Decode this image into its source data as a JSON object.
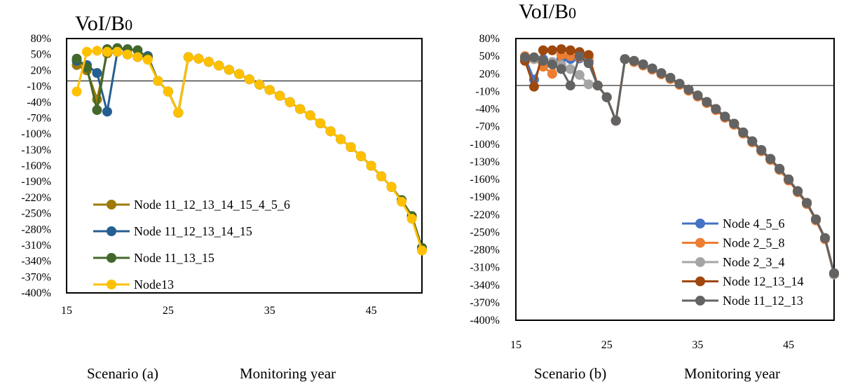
{
  "chart_data": [
    {
      "type": "line",
      "title": "VoI/B0",
      "title_main": "VoI/B",
      "title_sub": "0",
      "scenario_label": "Scenario (a)",
      "xlabel": "Monitoring year",
      "xlim": [
        15,
        50
      ],
      "xticks": [
        15,
        25,
        35,
        45
      ],
      "ylim": [
        -400,
        80
      ],
      "ytick_labels": [
        "80%",
        "50%",
        "20%",
        "-10%",
        "-40%",
        "-70%",
        "-100%",
        "-130%",
        "-160%",
        "-190%",
        "-220%",
        "-250%",
        "-280%",
        "-310%",
        "-340%",
        "-370%",
        "-400%"
      ],
      "ytick_values": [
        80,
        50,
        20,
        -10,
        -40,
        -70,
        -100,
        -130,
        -160,
        -190,
        -220,
        -250,
        -280,
        -310,
        -340,
        -370,
        -400
      ],
      "reference_line_y": 0,
      "legend_position": "lower-left",
      "series": [
        {
          "name": "Node 11_12_13_14_15_4_5_6",
          "color": "#9C7A00",
          "x": [
            16,
            17,
            18,
            19,
            20,
            21,
            22,
            23,
            24,
            25,
            26,
            27,
            28,
            29,
            30,
            31,
            32,
            33,
            34,
            35,
            36,
            37,
            38,
            39,
            40,
            41,
            42,
            43,
            44,
            45,
            46,
            47,
            48,
            49,
            50
          ],
          "y": [
            30,
            20,
            -35,
            52,
            55,
            50,
            45,
            45,
            0,
            -20,
            -60,
            45,
            42,
            36,
            29,
            21,
            13,
            3,
            -7,
            -17,
            -28,
            -40,
            -53,
            -65,
            -80,
            -95,
            -110,
            -125,
            -142,
            -160,
            -180,
            -200,
            -225,
            -255,
            -315
          ]
        },
        {
          "name": "Node 11_12_13_14_15",
          "color": "#255E91",
          "x": [
            16,
            17,
            18,
            19,
            20,
            21,
            22,
            23,
            24,
            25,
            26,
            27,
            28,
            29,
            30,
            31,
            32,
            33,
            34,
            35,
            36,
            37,
            38,
            39,
            40,
            41,
            42,
            43,
            44,
            45,
            46,
            47,
            48,
            49,
            50
          ],
          "y": [
            38,
            30,
            15,
            -58,
            55,
            50,
            45,
            47,
            0,
            -20,
            -60,
            45,
            42,
            36,
            29,
            21,
            13,
            3,
            -7,
            -17,
            -28,
            -40,
            -53,
            -65,
            -80,
            -95,
            -110,
            -125,
            -142,
            -160,
            -180,
            -200,
            -225,
            -255,
            -315
          ]
        },
        {
          "name": "Node 11_13_15",
          "color": "#43682B",
          "x": [
            16,
            17,
            18,
            19,
            20,
            21,
            22,
            23,
            24,
            25,
            26,
            27,
            28,
            29,
            30,
            31,
            32,
            33,
            34,
            35,
            36,
            37,
            38,
            39,
            40,
            41,
            42,
            43,
            44,
            45,
            46,
            47,
            48,
            49,
            50
          ],
          "y": [
            42,
            25,
            -55,
            60,
            62,
            60,
            58,
            44,
            0,
            -20,
            -60,
            45,
            42,
            36,
            29,
            21,
            13,
            3,
            -7,
            -17,
            -28,
            -40,
            -53,
            -65,
            -80,
            -95,
            -110,
            -125,
            -142,
            -160,
            -180,
            -200,
            -225,
            -255,
            -315
          ]
        },
        {
          "name": "Node13",
          "color": "#FFC000",
          "x": [
            16,
            17,
            18,
            19,
            20,
            21,
            22,
            23,
            24,
            25,
            26,
            27,
            28,
            29,
            30,
            31,
            32,
            33,
            34,
            35,
            36,
            37,
            38,
            39,
            40,
            41,
            42,
            43,
            44,
            45,
            46,
            47,
            48,
            49,
            50
          ],
          "y": [
            -20,
            55,
            57,
            55,
            55,
            50,
            45,
            40,
            0,
            -20,
            -60,
            45,
            42,
            36,
            29,
            21,
            13,
            3,
            -7,
            -17,
            -28,
            -40,
            -53,
            -65,
            -80,
            -95,
            -110,
            -125,
            -142,
            -160,
            -180,
            -200,
            -228,
            -260,
            -320
          ]
        }
      ]
    },
    {
      "type": "line",
      "title": "VoI/B0",
      "title_main": "VoI/B",
      "title_sub": "0",
      "scenario_label": "Scenario (b)",
      "xlabel": "Monitoring year",
      "xlim": [
        15,
        50
      ],
      "xticks": [
        15,
        25,
        35,
        45
      ],
      "ylim": [
        -400,
        80
      ],
      "ytick_labels": [
        "80%",
        "50%",
        "20%",
        "-10%",
        "-40%",
        "-70%",
        "-100%",
        "-130%",
        "-160%",
        "-190%",
        "-220%",
        "-250%",
        "-280%",
        "-310%",
        "-340%",
        "-370%",
        "-400%"
      ],
      "ytick_values": [
        80,
        50,
        20,
        -10,
        -40,
        -70,
        -100,
        -130,
        -160,
        -190,
        -220,
        -250,
        -280,
        -310,
        -340,
        -370,
        -400
      ],
      "reference_line_y": 0,
      "legend_position": "lower-right",
      "series": [
        {
          "name": "Node 4_5_6",
          "color": "#4472C4",
          "x": [
            16,
            17,
            18,
            19,
            20,
            21,
            22,
            23,
            24,
            25,
            26,
            27,
            28,
            29,
            30,
            31,
            32,
            33,
            34,
            35,
            36,
            37,
            38,
            39,
            40,
            41,
            42,
            43,
            44,
            45,
            46,
            47,
            48,
            49,
            50
          ],
          "y": [
            48,
            10,
            45,
            40,
            45,
            45,
            46,
            42,
            0,
            -20,
            -60,
            45,
            42,
            36,
            29,
            21,
            13,
            3,
            -7,
            -17,
            -28,
            -40,
            -53,
            -65,
            -80,
            -95,
            -110,
            -125,
            -142,
            -160,
            -180,
            -200,
            -228,
            -260,
            -320
          ]
        },
        {
          "name": "Node 2_5_8",
          "color": "#ED7D31",
          "x": [
            16,
            17,
            18,
            19,
            20,
            21,
            22,
            23,
            24,
            25,
            26,
            27,
            28,
            29,
            30,
            31,
            32,
            33,
            34,
            35,
            36,
            37,
            38,
            39,
            40,
            41,
            42,
            43,
            44,
            45,
            46,
            47,
            48,
            49,
            50
          ],
          "y": [
            50,
            45,
            32,
            20,
            52,
            50,
            48,
            48,
            0,
            -20,
            -60,
            45,
            40,
            34,
            27,
            19,
            11,
            1,
            -9,
            -19,
            -30,
            -42,
            -55,
            -67,
            -82,
            -97,
            -112,
            -127,
            -144,
            -162,
            -182,
            -202,
            -230,
            -262,
            -322
          ]
        },
        {
          "name": "Node 2_3_4",
          "color": "#A5A5A5",
          "x": [
            16,
            17,
            18,
            19,
            20,
            21,
            22,
            23,
            24,
            25,
            26,
            27,
            28,
            29,
            30,
            31,
            32,
            33,
            34,
            35,
            36,
            37,
            38,
            39,
            40,
            41,
            42,
            43,
            44,
            45,
            46,
            47,
            48,
            49,
            50
          ],
          "y": [
            45,
            45,
            42,
            40,
            35,
            28,
            18,
            2,
            0,
            -20,
            -60,
            45,
            42,
            36,
            29,
            21,
            13,
            3,
            -7,
            -17,
            -28,
            -40,
            -53,
            -65,
            -80,
            -95,
            -110,
            -125,
            -142,
            -160,
            -180,
            -200,
            -228,
            -260,
            -322
          ]
        },
        {
          "name": "Node 12_13_14",
          "color": "#9E480E",
          "x": [
            16,
            17,
            18,
            19,
            20,
            21,
            22,
            23,
            24,
            25,
            26,
            27,
            28,
            29,
            30,
            31,
            32,
            33,
            34,
            35,
            36,
            37,
            38,
            39,
            40,
            41,
            42,
            43,
            44,
            45,
            46,
            47,
            48,
            49,
            50
          ],
          "y": [
            42,
            -2,
            60,
            60,
            62,
            60,
            57,
            52,
            0,
            -20,
            -60,
            45,
            42,
            36,
            29,
            21,
            13,
            3,
            -7,
            -17,
            -28,
            -40,
            -53,
            -65,
            -80,
            -95,
            -110,
            -125,
            -142,
            -160,
            -180,
            -200,
            -228,
            -260,
            -320
          ]
        },
        {
          "name": "Node 11_12_13",
          "color": "#636363",
          "x": [
            16,
            17,
            18,
            19,
            20,
            21,
            22,
            23,
            24,
            25,
            26,
            27,
            28,
            29,
            30,
            31,
            32,
            33,
            34,
            35,
            36,
            37,
            38,
            39,
            40,
            41,
            42,
            43,
            44,
            45,
            46,
            47,
            48,
            49,
            50
          ],
          "y": [
            48,
            48,
            42,
            36,
            28,
            0,
            50,
            38,
            0,
            -20,
            -60,
            45,
            42,
            36,
            29,
            21,
            13,
            3,
            -7,
            -17,
            -28,
            -40,
            -53,
            -65,
            -80,
            -95,
            -110,
            -125,
            -142,
            -160,
            -180,
            -200,
            -228,
            -260,
            -320
          ]
        }
      ]
    }
  ]
}
